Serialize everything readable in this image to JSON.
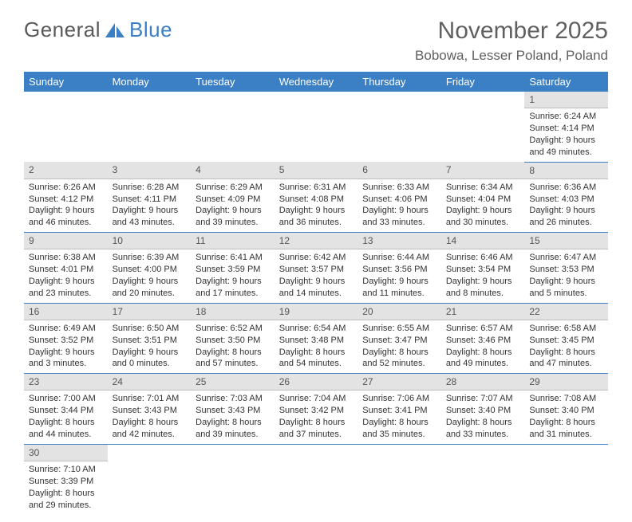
{
  "brand": {
    "part1": "General",
    "part2": "Blue"
  },
  "title": "November 2025",
  "location": "Bobowa, Lesser Poland, Poland",
  "colors": {
    "header_bg": "#3b7fc4",
    "header_text": "#ffffff",
    "daynum_bg": "#e3e3e3",
    "row_border": "#3b7fc4",
    "text": "#333333"
  },
  "day_headers": [
    "Sunday",
    "Monday",
    "Tuesday",
    "Wednesday",
    "Thursday",
    "Friday",
    "Saturday"
  ],
  "weeks": [
    [
      null,
      null,
      null,
      null,
      null,
      null,
      {
        "n": "1",
        "sr": "Sunrise: 6:24 AM",
        "ss": "Sunset: 4:14 PM",
        "dl1": "Daylight: 9 hours",
        "dl2": "and 49 minutes."
      }
    ],
    [
      {
        "n": "2",
        "sr": "Sunrise: 6:26 AM",
        "ss": "Sunset: 4:12 PM",
        "dl1": "Daylight: 9 hours",
        "dl2": "and 46 minutes."
      },
      {
        "n": "3",
        "sr": "Sunrise: 6:28 AM",
        "ss": "Sunset: 4:11 PM",
        "dl1": "Daylight: 9 hours",
        "dl2": "and 43 minutes."
      },
      {
        "n": "4",
        "sr": "Sunrise: 6:29 AM",
        "ss": "Sunset: 4:09 PM",
        "dl1": "Daylight: 9 hours",
        "dl2": "and 39 minutes."
      },
      {
        "n": "5",
        "sr": "Sunrise: 6:31 AM",
        "ss": "Sunset: 4:08 PM",
        "dl1": "Daylight: 9 hours",
        "dl2": "and 36 minutes."
      },
      {
        "n": "6",
        "sr": "Sunrise: 6:33 AM",
        "ss": "Sunset: 4:06 PM",
        "dl1": "Daylight: 9 hours",
        "dl2": "and 33 minutes."
      },
      {
        "n": "7",
        "sr": "Sunrise: 6:34 AM",
        "ss": "Sunset: 4:04 PM",
        "dl1": "Daylight: 9 hours",
        "dl2": "and 30 minutes."
      },
      {
        "n": "8",
        "sr": "Sunrise: 6:36 AM",
        "ss": "Sunset: 4:03 PM",
        "dl1": "Daylight: 9 hours",
        "dl2": "and 26 minutes."
      }
    ],
    [
      {
        "n": "9",
        "sr": "Sunrise: 6:38 AM",
        "ss": "Sunset: 4:01 PM",
        "dl1": "Daylight: 9 hours",
        "dl2": "and 23 minutes."
      },
      {
        "n": "10",
        "sr": "Sunrise: 6:39 AM",
        "ss": "Sunset: 4:00 PM",
        "dl1": "Daylight: 9 hours",
        "dl2": "and 20 minutes."
      },
      {
        "n": "11",
        "sr": "Sunrise: 6:41 AM",
        "ss": "Sunset: 3:59 PM",
        "dl1": "Daylight: 9 hours",
        "dl2": "and 17 minutes."
      },
      {
        "n": "12",
        "sr": "Sunrise: 6:42 AM",
        "ss": "Sunset: 3:57 PM",
        "dl1": "Daylight: 9 hours",
        "dl2": "and 14 minutes."
      },
      {
        "n": "13",
        "sr": "Sunrise: 6:44 AM",
        "ss": "Sunset: 3:56 PM",
        "dl1": "Daylight: 9 hours",
        "dl2": "and 11 minutes."
      },
      {
        "n": "14",
        "sr": "Sunrise: 6:46 AM",
        "ss": "Sunset: 3:54 PM",
        "dl1": "Daylight: 9 hours",
        "dl2": "and 8 minutes."
      },
      {
        "n": "15",
        "sr": "Sunrise: 6:47 AM",
        "ss": "Sunset: 3:53 PM",
        "dl1": "Daylight: 9 hours",
        "dl2": "and 5 minutes."
      }
    ],
    [
      {
        "n": "16",
        "sr": "Sunrise: 6:49 AM",
        "ss": "Sunset: 3:52 PM",
        "dl1": "Daylight: 9 hours",
        "dl2": "and 3 minutes."
      },
      {
        "n": "17",
        "sr": "Sunrise: 6:50 AM",
        "ss": "Sunset: 3:51 PM",
        "dl1": "Daylight: 9 hours",
        "dl2": "and 0 minutes."
      },
      {
        "n": "18",
        "sr": "Sunrise: 6:52 AM",
        "ss": "Sunset: 3:50 PM",
        "dl1": "Daylight: 8 hours",
        "dl2": "and 57 minutes."
      },
      {
        "n": "19",
        "sr": "Sunrise: 6:54 AM",
        "ss": "Sunset: 3:48 PM",
        "dl1": "Daylight: 8 hours",
        "dl2": "and 54 minutes."
      },
      {
        "n": "20",
        "sr": "Sunrise: 6:55 AM",
        "ss": "Sunset: 3:47 PM",
        "dl1": "Daylight: 8 hours",
        "dl2": "and 52 minutes."
      },
      {
        "n": "21",
        "sr": "Sunrise: 6:57 AM",
        "ss": "Sunset: 3:46 PM",
        "dl1": "Daylight: 8 hours",
        "dl2": "and 49 minutes."
      },
      {
        "n": "22",
        "sr": "Sunrise: 6:58 AM",
        "ss": "Sunset: 3:45 PM",
        "dl1": "Daylight: 8 hours",
        "dl2": "and 47 minutes."
      }
    ],
    [
      {
        "n": "23",
        "sr": "Sunrise: 7:00 AM",
        "ss": "Sunset: 3:44 PM",
        "dl1": "Daylight: 8 hours",
        "dl2": "and 44 minutes."
      },
      {
        "n": "24",
        "sr": "Sunrise: 7:01 AM",
        "ss": "Sunset: 3:43 PM",
        "dl1": "Daylight: 8 hours",
        "dl2": "and 42 minutes."
      },
      {
        "n": "25",
        "sr": "Sunrise: 7:03 AM",
        "ss": "Sunset: 3:43 PM",
        "dl1": "Daylight: 8 hours",
        "dl2": "and 39 minutes."
      },
      {
        "n": "26",
        "sr": "Sunrise: 7:04 AM",
        "ss": "Sunset: 3:42 PM",
        "dl1": "Daylight: 8 hours",
        "dl2": "and 37 minutes."
      },
      {
        "n": "27",
        "sr": "Sunrise: 7:06 AM",
        "ss": "Sunset: 3:41 PM",
        "dl1": "Daylight: 8 hours",
        "dl2": "and 35 minutes."
      },
      {
        "n": "28",
        "sr": "Sunrise: 7:07 AM",
        "ss": "Sunset: 3:40 PM",
        "dl1": "Daylight: 8 hours",
        "dl2": "and 33 minutes."
      },
      {
        "n": "29",
        "sr": "Sunrise: 7:08 AM",
        "ss": "Sunset: 3:40 PM",
        "dl1": "Daylight: 8 hours",
        "dl2": "and 31 minutes."
      }
    ],
    [
      {
        "n": "30",
        "sr": "Sunrise: 7:10 AM",
        "ss": "Sunset: 3:39 PM",
        "dl1": "Daylight: 8 hours",
        "dl2": "and 29 minutes."
      },
      null,
      null,
      null,
      null,
      null,
      null
    ]
  ]
}
